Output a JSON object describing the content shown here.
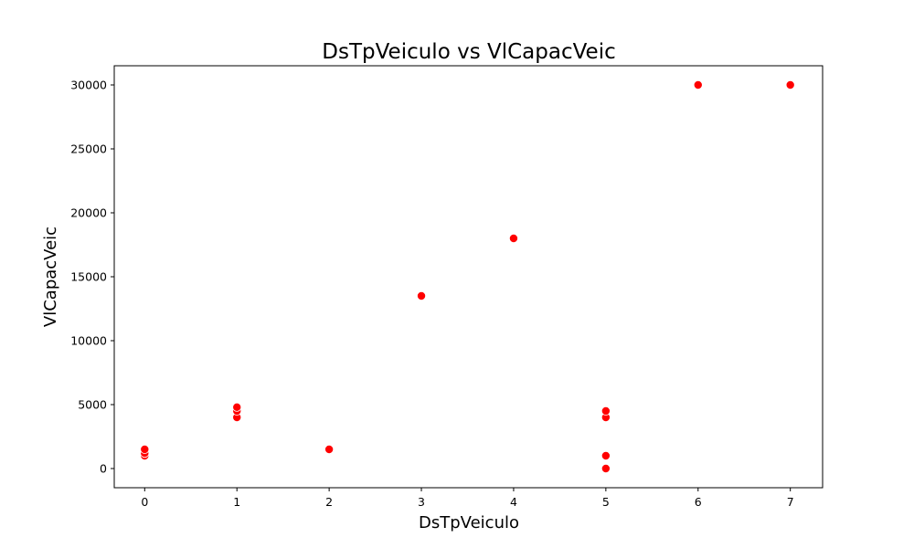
{
  "chart_data": {
    "type": "scatter",
    "title": "DsTpVeiculo vs VlCapacVeic",
    "xlabel": "DsTpVeiculo",
    "ylabel": "VlCapacVeic",
    "xlim": [
      -0.33,
      7.35
    ],
    "ylim": [
      -1500,
      31500
    ],
    "xticks": [
      0,
      1,
      2,
      3,
      4,
      5,
      6,
      7
    ],
    "yticks": [
      0,
      5000,
      10000,
      15000,
      20000,
      25000,
      30000
    ],
    "grid": false,
    "marker_color": "#ff0000",
    "series": [
      {
        "points": [
          {
            "x": 0,
            "y": 1000
          },
          {
            "x": 0,
            "y": 1200
          },
          {
            "x": 0,
            "y": 1500
          },
          {
            "x": 1,
            "y": 4000
          },
          {
            "x": 1,
            "y": 4500
          },
          {
            "x": 1,
            "y": 4800
          },
          {
            "x": 2,
            "y": 1500
          },
          {
            "x": 3,
            "y": 13500
          },
          {
            "x": 4,
            "y": 18000
          },
          {
            "x": 5,
            "y": 0
          },
          {
            "x": 5,
            "y": 1000
          },
          {
            "x": 5,
            "y": 4000
          },
          {
            "x": 5,
            "y": 4500
          },
          {
            "x": 6,
            "y": 30000
          },
          {
            "x": 7,
            "y": 30000
          }
        ]
      }
    ]
  }
}
